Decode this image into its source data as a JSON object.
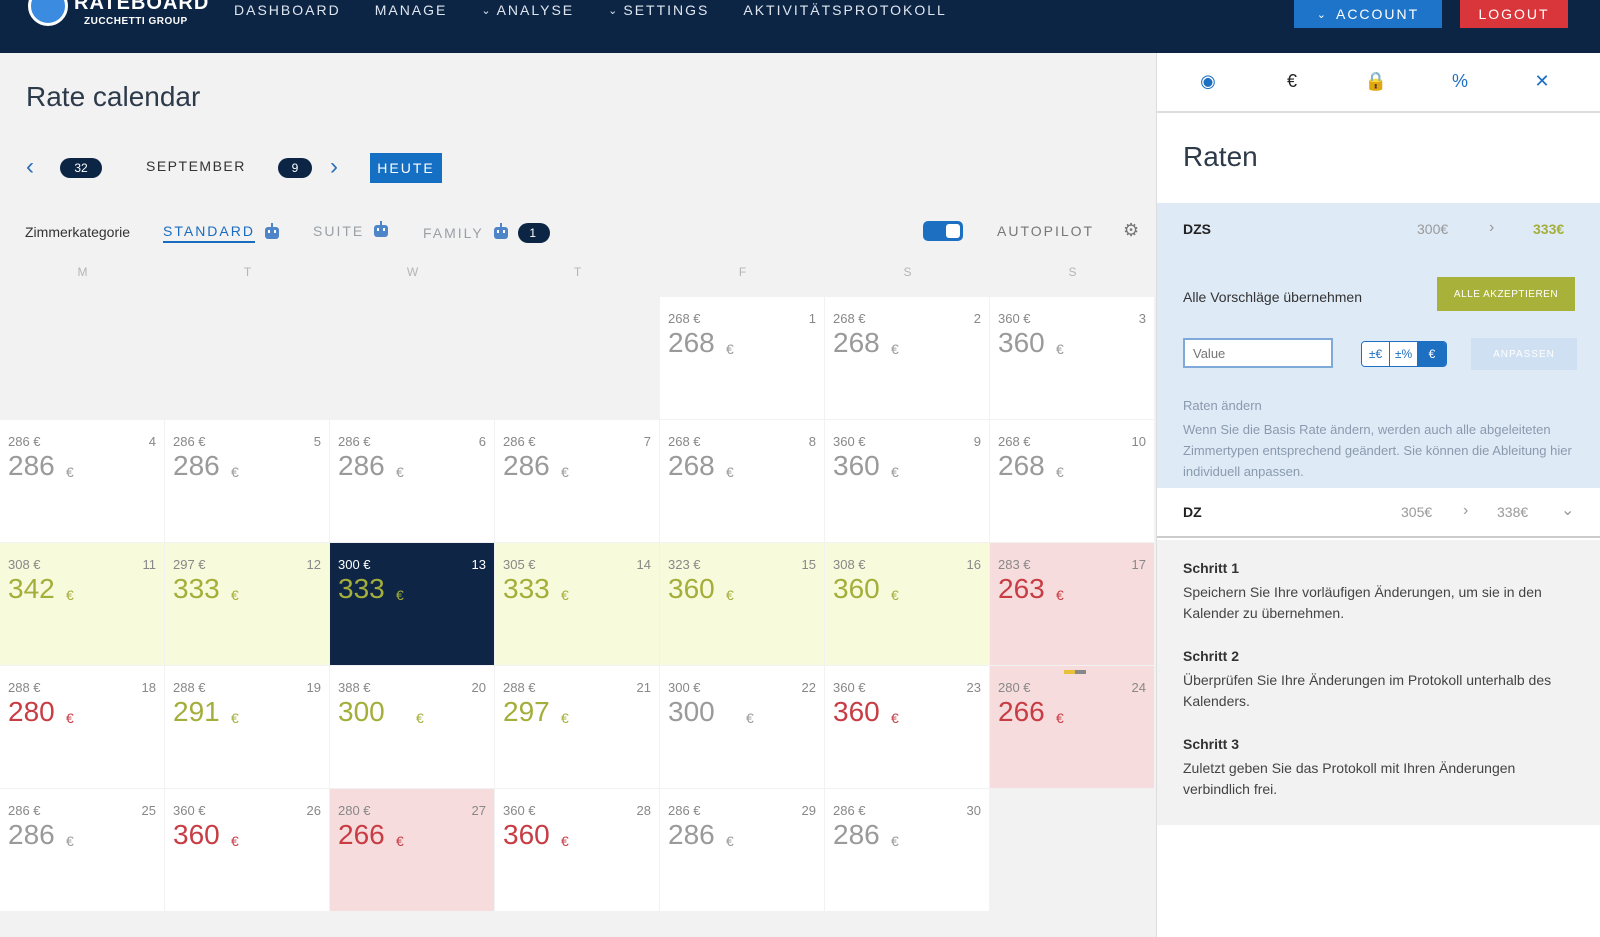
{
  "header": {
    "logo_title": "RATEBOARD",
    "logo_sub": "ZUCCHETTI GROUP",
    "nav": [
      {
        "label": "DASHBOARD",
        "chevron": false
      },
      {
        "label": "MANAGE",
        "chevron": false
      },
      {
        "label": "ANALYSE",
        "chevron": true
      },
      {
        "label": "SETTINGS",
        "chevron": true
      },
      {
        "label": "AKTIVITÄTSPROTOKOLL",
        "chevron": false
      }
    ],
    "account_label": "ACCOUNT",
    "logout_label": "LOGOUT",
    "colors": {
      "bar": "#0d2545",
      "account": "#1e74c8",
      "logout": "#d9363b"
    }
  },
  "calendar": {
    "title": "Rate calendar",
    "prev_badge": "32",
    "month": "SEPTEMBER",
    "next_badge": "9",
    "today_label": "HEUTE",
    "category_label": "Zimmerkategorie",
    "categories": [
      {
        "label": "STANDARD",
        "active": true
      },
      {
        "label": "SUITE",
        "active": false
      },
      {
        "label": "FAMILY",
        "active": false,
        "badge": "1"
      }
    ],
    "autopilot_label": "AUTOPILOT",
    "autopilot_on": true,
    "weekdays": [
      "M",
      "T",
      "W",
      "T",
      "F",
      "S",
      "S"
    ],
    "days": [
      {
        "day": "1",
        "base": "268 €",
        "rate": "268",
        "cur": "€",
        "style": "white",
        "rate_color": "gray"
      },
      {
        "day": "2",
        "base": "268 €",
        "rate": "268",
        "cur": "€",
        "style": "white",
        "rate_color": "gray"
      },
      {
        "day": "3",
        "base": "360 €",
        "rate": "360",
        "cur": "€",
        "style": "white",
        "rate_color": "gray"
      },
      {
        "day": "4",
        "base": "286 €",
        "rate": "286",
        "cur": "€",
        "style": "white",
        "rate_color": "gray"
      },
      {
        "day": "5",
        "base": "286 €",
        "rate": "286",
        "cur": "€",
        "style": "white",
        "rate_color": "gray"
      },
      {
        "day": "6",
        "base": "286 €",
        "rate": "286",
        "cur": "€",
        "style": "white",
        "rate_color": "gray"
      },
      {
        "day": "7",
        "base": "286 €",
        "rate": "286",
        "cur": "€",
        "style": "white",
        "rate_color": "gray"
      },
      {
        "day": "8",
        "base": "268 €",
        "rate": "268",
        "cur": "€",
        "style": "white",
        "rate_color": "gray"
      },
      {
        "day": "9",
        "base": "360 €",
        "rate": "360",
        "cur": "€",
        "style": "white",
        "rate_color": "gray"
      },
      {
        "day": "10",
        "base": "268 €",
        "rate": "268",
        "cur": "€",
        "style": "white",
        "rate_color": "gray"
      },
      {
        "day": "11",
        "base": "308 €",
        "rate": "342",
        "cur": "€",
        "style": "yellow",
        "rate_color": "olive"
      },
      {
        "day": "12",
        "base": "297 €",
        "rate": "333",
        "cur": "€",
        "style": "yellow",
        "rate_color": "olive"
      },
      {
        "day": "13",
        "base": "300 €",
        "rate": "333",
        "cur": "€",
        "style": "dark",
        "rate_color": "olive"
      },
      {
        "day": "14",
        "base": "305 €",
        "rate": "333",
        "cur": "€",
        "style": "yellow",
        "rate_color": "olive"
      },
      {
        "day": "15",
        "base": "323 €",
        "rate": "360",
        "cur": "€",
        "style": "yellow",
        "rate_color": "olive"
      },
      {
        "day": "16",
        "base": "308 €",
        "rate": "360",
        "cur": "€",
        "style": "yellow",
        "rate_color": "olive"
      },
      {
        "day": "17",
        "base": "283 €",
        "rate": "263",
        "cur": "€",
        "style": "red",
        "rate_color": "red"
      },
      {
        "day": "18",
        "base": "288 €",
        "rate": "280",
        "cur": "€",
        "style": "white",
        "rate_color": "red"
      },
      {
        "day": "19",
        "base": "288 €",
        "rate": "291",
        "cur": "€",
        "style": "white",
        "rate_color": "olive"
      },
      {
        "day": "20",
        "base": "388 €",
        "rate": "300",
        "cur": "€",
        "style": "white",
        "rate_color": "olive"
      },
      {
        "day": "21",
        "base": "288 €",
        "rate": "297",
        "cur": "€",
        "style": "white",
        "rate_color": "olive"
      },
      {
        "day": "22",
        "base": "300 €",
        "rate": "300",
        "cur": "€",
        "style": "white",
        "rate_color": "gray"
      },
      {
        "day": "23",
        "base": "360 €",
        "rate": "360",
        "cur": "€",
        "style": "white",
        "rate_color": "red"
      },
      {
        "day": "24",
        "base": "280 €",
        "rate": "266",
        "cur": "€",
        "style": "red",
        "rate_color": "red"
      },
      {
        "day": "25",
        "base": "286 €",
        "rate": "286",
        "cur": "€",
        "style": "white",
        "rate_color": "gray"
      },
      {
        "day": "26",
        "base": "360 €",
        "rate": "360",
        "cur": "€",
        "style": "white",
        "rate_color": "red"
      },
      {
        "day": "27",
        "base": "280 €",
        "rate": "266",
        "cur": "€",
        "style": "red",
        "rate_color": "red"
      },
      {
        "day": "28",
        "base": "360 €",
        "rate": "360",
        "cur": "€",
        "style": "white",
        "rate_color": "red"
      },
      {
        "day": "29",
        "base": "286 €",
        "rate": "286",
        "cur": "€",
        "style": "white",
        "rate_color": "gray"
      },
      {
        "day": "30",
        "base": "286 €",
        "rate": "286",
        "cur": "€",
        "style": "white",
        "rate_color": "gray"
      }
    ]
  },
  "panel": {
    "tabs": [
      "eye-icon",
      "euro-icon",
      "lock-icon",
      "percent-icon",
      "close-icon"
    ],
    "tab_glyphs": [
      "◉",
      "€",
      "🔒",
      "%",
      "✕"
    ],
    "title": "Raten",
    "dzs": {
      "label": "DZS",
      "old": "300€",
      "new": "333€"
    },
    "accept_all_label": "Alle Vorschläge übernehmen",
    "accept_all_button": "ALLE AKZEPTIEREN",
    "value_placeholder": "Value",
    "mode_buttons": [
      "±€",
      "±%",
      "€"
    ],
    "adjust_button": "ANPASSEN",
    "help_title": "Raten ändern",
    "help_text": "Wenn Sie die Basis Rate ändern, werden auch alle abgeleiteten Zimmertypen entsprechend geändert. Sie können die Ableitung hier individuell anpassen.",
    "dz": {
      "label": "DZ",
      "old": "305€",
      "new": "338€"
    },
    "steps": [
      {
        "title": "Schritt 1",
        "text": "Speichern Sie Ihre vorläufigen Änderungen, um sie in den Kalender zu übernehmen."
      },
      {
        "title": "Schritt 2",
        "text": "Überprüfen Sie Ihre Änderungen im Protokoll unterhalb des Kalenders."
      },
      {
        "title": "Schritt 3",
        "text": "Zuletzt geben Sie das Protokoll mit Ihren Änderungen verbindlich frei."
      }
    ]
  }
}
